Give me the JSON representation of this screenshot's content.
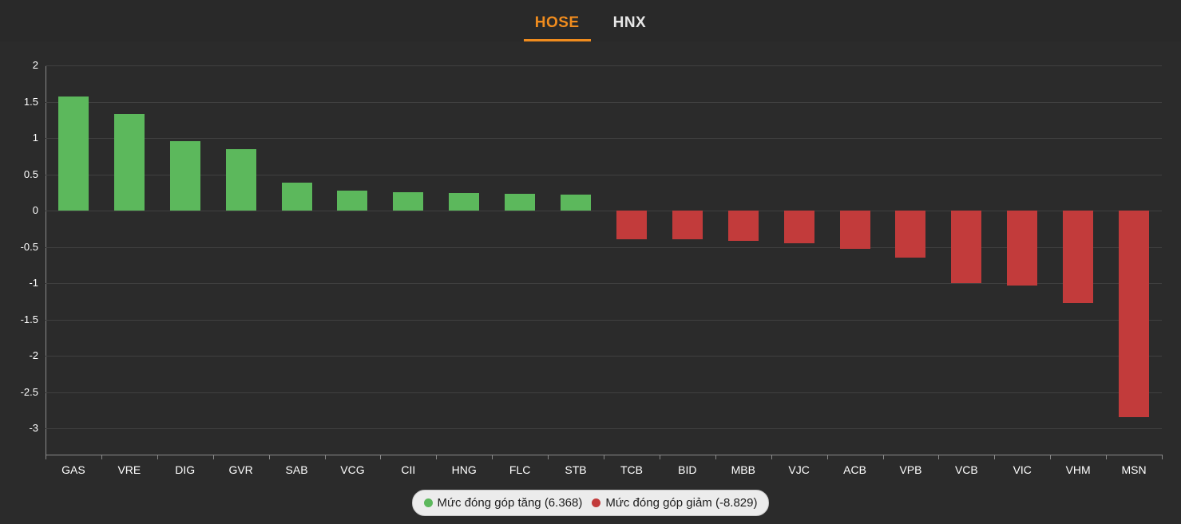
{
  "tabs": [
    {
      "label": "HOSE",
      "active": true
    },
    {
      "label": "HNX",
      "active": false
    }
  ],
  "legend": [
    {
      "label": "Mức đóng góp tăng (6.368)",
      "color": "#5cb85c"
    },
    {
      "label": "Mức đóng góp giảm (-8.829)",
      "color": "#c23b3b"
    }
  ],
  "chart_data": {
    "type": "bar",
    "title": "",
    "xlabel": "",
    "ylabel": "",
    "categories": [
      "GAS",
      "VRE",
      "DIG",
      "GVR",
      "SAB",
      "VCG",
      "CII",
      "HNG",
      "FLC",
      "STB",
      "TCB",
      "BID",
      "MBB",
      "VJC",
      "ACB",
      "VPB",
      "VCB",
      "VIC",
      "VHM",
      "MSN"
    ],
    "values": [
      1.57,
      1.33,
      0.96,
      0.85,
      0.38,
      0.27,
      0.25,
      0.24,
      0.23,
      0.22,
      -0.4,
      -0.4,
      -0.42,
      -0.45,
      -0.53,
      -0.65,
      -1.0,
      -1.03,
      -1.28,
      -2.85
    ],
    "ylim": [
      -3.3,
      2
    ],
    "yticks": [
      2,
      1.5,
      1,
      0.5,
      0,
      -0.5,
      -1,
      -1.5,
      -2,
      -2.5,
      -3
    ],
    "grid": true,
    "legend_position": "bottom",
    "positive_color": "#5cb85c",
    "negative_color": "#c23b3b",
    "positive_total": "6.368",
    "negative_total": "-8.829"
  },
  "colors": {
    "background": "#2b2b2b",
    "grid": "#404040",
    "axis": "#8a8a8a",
    "tick_label": "#ffffff",
    "active_tab": "#f08c1e",
    "inactive_tab": "#e6e6e6",
    "legend_background": "#ececec",
    "legend_text": "#1d1d1d"
  }
}
